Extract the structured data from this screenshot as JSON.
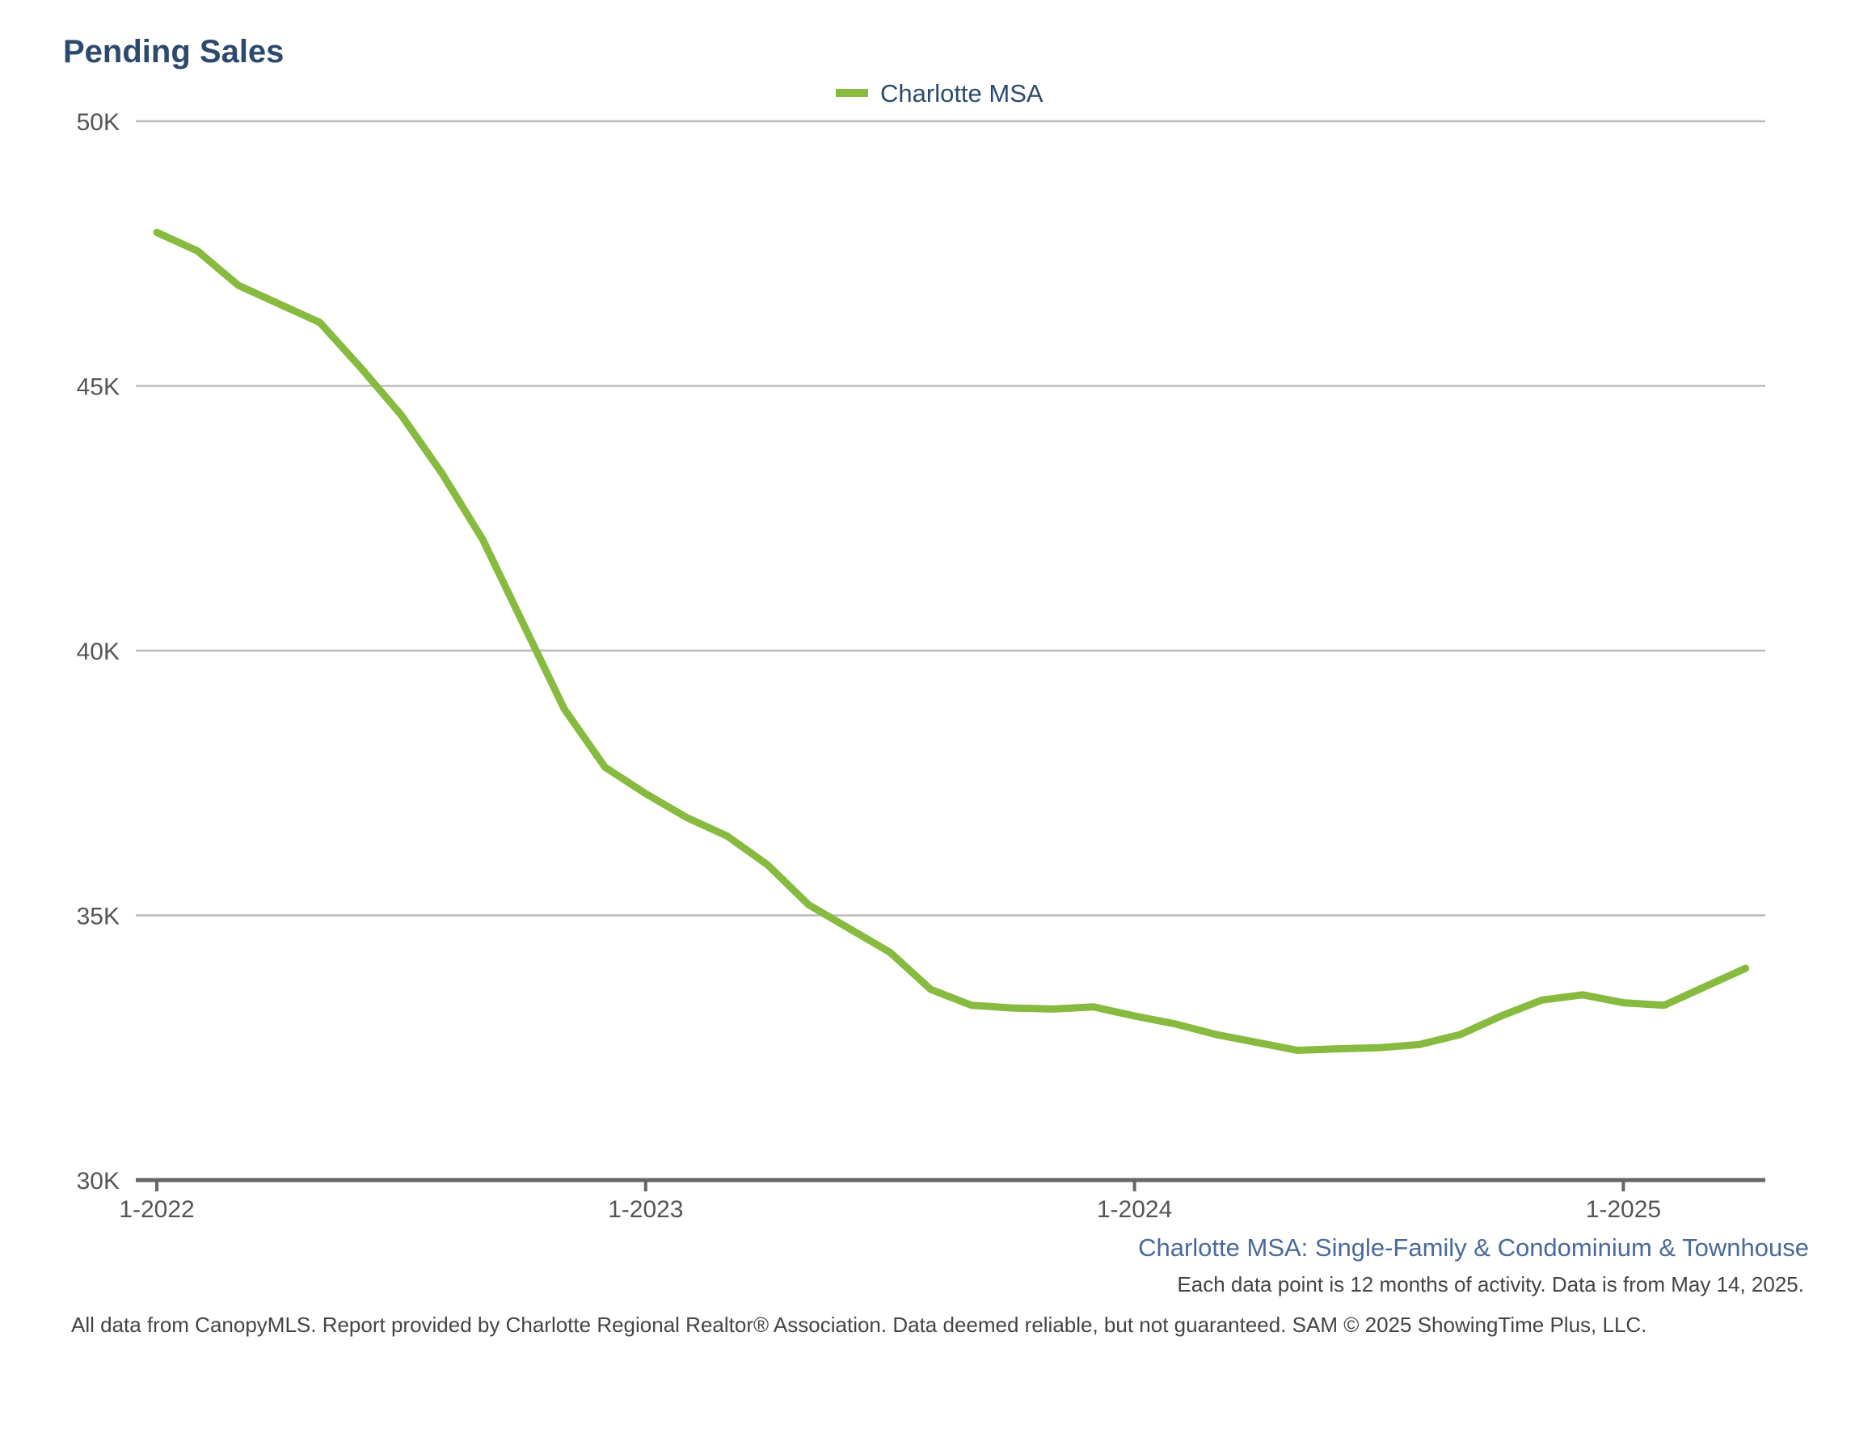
{
  "chart_data": {
    "type": "line",
    "title": "Pending Sales",
    "subtitle": "Charlotte MSA: Single-Family & Condominium & Townhouse",
    "note": "Each data point is 12 months of activity. Data is from May 14, 2025.",
    "footer": "All data from CanopyMLS. Report provided by Charlotte Regional Realtor® Association. Data deemed reliable, but not guaranteed. SAM © 2025 ShowingTime Plus, LLC.",
    "legend_position": "top-center",
    "grid": true,
    "ylim": [
      30000,
      50000
    ],
    "y_ticks": [
      {
        "value": 30000,
        "label": "30K"
      },
      {
        "value": 35000,
        "label": "35K"
      },
      {
        "value": 40000,
        "label": "40K"
      },
      {
        "value": 45000,
        "label": "45K"
      },
      {
        "value": 50000,
        "label": "50K"
      }
    ],
    "x_ticks": [
      {
        "value": "2022-01",
        "label": "1-2022"
      },
      {
        "value": "2023-01",
        "label": "1-2023"
      },
      {
        "value": "2024-01",
        "label": "1-2024"
      },
      {
        "value": "2025-01",
        "label": "1-2025"
      }
    ],
    "x_range": [
      "2022-01",
      "2025-04"
    ],
    "colors": {
      "series": "#86bb3f",
      "title": "#2c4a6e",
      "subtitle": "#4a6a9a"
    },
    "series": [
      {
        "name": "Charlotte MSA",
        "color": "#86bb3f",
        "x": [
          "2022-01",
          "2022-02",
          "2022-03",
          "2022-04",
          "2022-05",
          "2022-06",
          "2022-07",
          "2022-08",
          "2022-09",
          "2022-10",
          "2022-11",
          "2022-12",
          "2023-01",
          "2023-02",
          "2023-03",
          "2023-04",
          "2023-05",
          "2023-06",
          "2023-07",
          "2023-08",
          "2023-09",
          "2023-10",
          "2023-11",
          "2023-12",
          "2024-01",
          "2024-02",
          "2024-03",
          "2024-04",
          "2024-05",
          "2024-06",
          "2024-07",
          "2024-08",
          "2024-09",
          "2024-10",
          "2024-11",
          "2024-12",
          "2025-01",
          "2025-02",
          "2025-03",
          "2025-04"
        ],
        "values": [
          47900,
          47550,
          46900,
          46550,
          46200,
          45350,
          44450,
          43350,
          42100,
          40500,
          38900,
          37800,
          37300,
          36850,
          36500,
          35950,
          35200,
          34750,
          34300,
          33600,
          33300,
          33250,
          33230,
          33270,
          33100,
          32950,
          32750,
          32600,
          32450,
          32480,
          32500,
          32560,
          32750,
          33100,
          33400,
          33500,
          33350,
          33300,
          33650,
          34000
        ]
      }
    ]
  }
}
